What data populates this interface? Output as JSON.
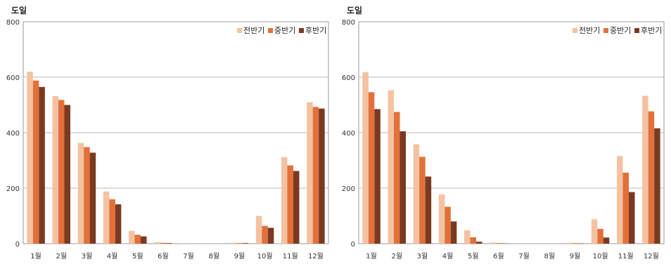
{
  "chart_data": [
    {
      "type": "bar",
      "unit_label": "도일",
      "categories": [
        "1월",
        "2월",
        "3월",
        "4월",
        "5월",
        "6월",
        "7월",
        "8월",
        "9월",
        "10월",
        "11월",
        "12월"
      ],
      "ylim": [
        0,
        800
      ],
      "yticks": [
        "0",
        "200",
        "400",
        "600",
        "800"
      ],
      "grid": true,
      "legend_position": "top-right",
      "series": [
        {
          "name": "전반기",
          "color": "#f4c2a1",
          "values": [
            620,
            532,
            363,
            188,
            46,
            5,
            2,
            0,
            3,
            100,
            312,
            510
          ]
        },
        {
          "name": "중반기",
          "color": "#e2703a",
          "values": [
            588,
            518,
            348,
            160,
            32,
            3,
            0,
            0,
            2,
            64,
            282,
            493
          ]
        },
        {
          "name": "후반기",
          "color": "#7a3a22",
          "values": [
            565,
            500,
            328,
            142,
            26,
            2,
            0,
            0,
            2,
            57,
            262,
            487
          ]
        }
      ]
    },
    {
      "type": "bar",
      "unit_label": "도일",
      "categories": [
        "1월",
        "2월",
        "3월",
        "4월",
        "5월",
        "6월",
        "7월",
        "8월",
        "9월",
        "10월",
        "11월",
        "12월"
      ],
      "ylim": [
        0,
        800
      ],
      "yticks": [
        "0",
        "200",
        "400",
        "600",
        "800"
      ],
      "grid": true,
      "legend_position": "top-right",
      "series": [
        {
          "name": "전반기",
          "color": "#f4c2a1",
          "values": [
            618,
            553,
            358,
            178,
            48,
            4,
            0,
            0,
            3,
            88,
            316,
            533
          ]
        },
        {
          "name": "중반기",
          "color": "#e2703a",
          "values": [
            546,
            475,
            313,
            133,
            23,
            2,
            0,
            0,
            2,
            53,
            256,
            477
          ]
        },
        {
          "name": "후반기",
          "color": "#7a3a22",
          "values": [
            485,
            405,
            242,
            80,
            7,
            1,
            0,
            0,
            1,
            22,
            186,
            416
          ]
        }
      ]
    }
  ]
}
